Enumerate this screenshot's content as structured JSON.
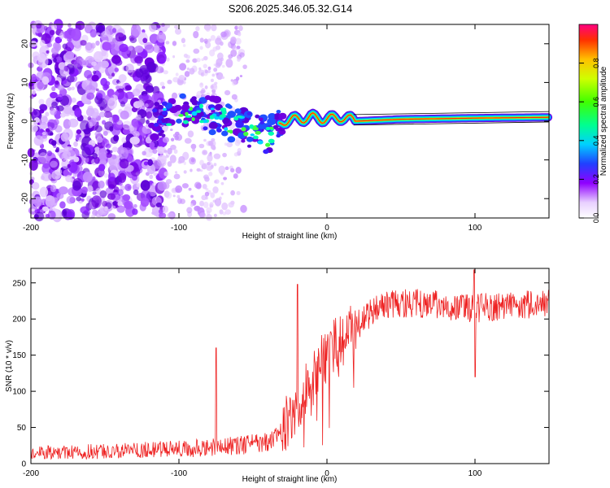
{
  "figure_title": "S206.2025.346.05.32.G14",
  "chart_data": [
    {
      "type": "heatmap",
      "xlabel": "Height of straight line (km)",
      "ylabel": "Frequency (Hz)",
      "xlim": [
        -200,
        150
      ],
      "ylim": [
        -25,
        25
      ],
      "xticks": [
        -200,
        -100,
        0,
        100
      ],
      "yticks": [
        -20,
        -10,
        0,
        10,
        20
      ],
      "colorbar": {
        "label": "Normalized spectral amplitude",
        "range": [
          0,
          1
        ],
        "ticks": [
          "0.0",
          "0.2",
          "0.4",
          "0.6",
          "0.8"
        ],
        "tick_values": [
          0.0,
          0.2,
          0.4,
          0.6,
          0.8
        ]
      },
      "ridge": {
        "description_points_x": [
          -120,
          -100,
          -80,
          -60,
          -40,
          -30,
          -20,
          -10,
          0,
          10,
          20,
          50,
          100,
          150
        ],
        "frequency_hz": [
          0,
          2,
          2,
          -1,
          -4,
          0,
          0.5,
          1,
          0.5,
          1,
          0,
          0.5,
          0.8,
          1
        ]
      }
    },
    {
      "type": "line",
      "xlabel": "Height of straight line (km)",
      "ylabel": "SNR (10 * v/v)",
      "xlim": [
        -200,
        150
      ],
      "ylim": [
        0,
        270
      ],
      "xticks": [
        -200,
        -100,
        0,
        100
      ],
      "yticks": [
        0,
        50,
        100,
        150,
        200,
        250
      ],
      "series": [
        {
          "name": "SNR",
          "color": "#ee2222",
          "trend_x": [
            -200,
            -150,
            -100,
            -60,
            -40,
            -30,
            -20,
            -10,
            0,
            10,
            20,
            30,
            40,
            60,
            100,
            150
          ],
          "trend_y": [
            15,
            17,
            20,
            25,
            30,
            45,
            80,
            120,
            150,
            170,
            190,
            210,
            222,
            222,
            215,
            222
          ]
        }
      ]
    }
  ]
}
